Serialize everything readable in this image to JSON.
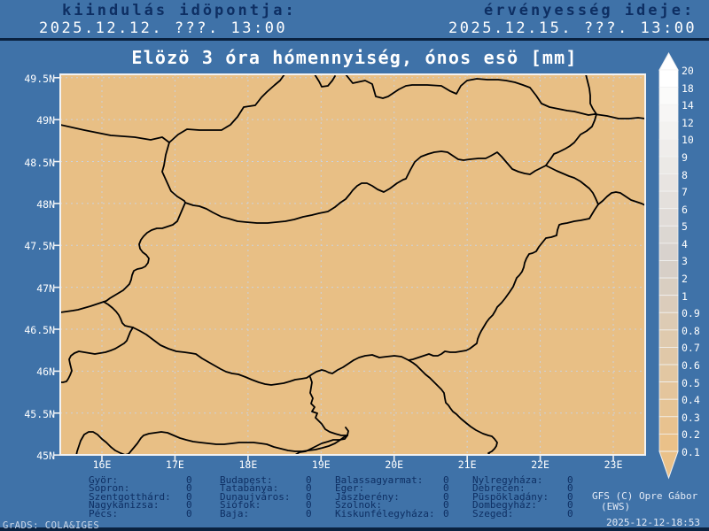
{
  "header": {
    "init_label": "kiindulás idöpontja:",
    "init_value": "2025.12.12. ???. 13:00",
    "valid_label": "érvényesség ideje:",
    "valid_value": "2025.12.15. ???. 13:00"
  },
  "title": "Elözö 3 óra hómennyiség, ónos esö [mm]",
  "map": {
    "lat_ticks": [
      "49.5N",
      "49N",
      "48.5N",
      "48N",
      "47.5N",
      "47N",
      "46.5N",
      "46N",
      "45.5N",
      "45N"
    ],
    "lon_ticks": [
      "16E",
      "17E",
      "18E",
      "19E",
      "20E",
      "21E",
      "22E",
      "23E"
    ]
  },
  "colorbar": {
    "labels": [
      "20",
      "18",
      "14",
      "12",
      "10",
      "9",
      "8",
      "7",
      "6",
      "5",
      "4",
      "3",
      "2",
      "1",
      "0.9",
      "0.8",
      "0.7",
      "0.6",
      "0.5",
      "0.4",
      "0.3",
      "0.2",
      "0.1"
    ]
  },
  "stations": {
    "columns": [
      [
        {
          "name": "Györ:",
          "value": "0"
        },
        {
          "name": "Sopron:",
          "value": "0"
        },
        {
          "name": "Szentgotthárd:",
          "value": "0"
        },
        {
          "name": "Nagykanizsa:",
          "value": "0"
        },
        {
          "name": "Pécs:",
          "value": "0"
        }
      ],
      [
        {
          "name": "Budapest:",
          "value": "0"
        },
        {
          "name": "Tatabánya:",
          "value": "0"
        },
        {
          "name": "Dunaujváros:",
          "value": "0"
        },
        {
          "name": "Siófok:",
          "value": "0"
        },
        {
          "name": "Baja:",
          "value": "0"
        }
      ],
      [
        {
          "name": "Balassagyarmat:",
          "value": "0"
        },
        {
          "name": "Eger:",
          "value": "0"
        },
        {
          "name": "Jászberény:",
          "value": "0"
        },
        {
          "name": "Szolnok:",
          "value": "0"
        },
        {
          "name": "Kiskunfélegyháza:",
          "value": "0"
        }
      ],
      [
        {
          "name": "Nylregyháza:",
          "value": "0"
        },
        {
          "name": "Debrecen:",
          "value": "0"
        },
        {
          "name": "Püspökladány:",
          "value": "0"
        },
        {
          "name": "Dombegyház:",
          "value": "0"
        },
        {
          "name": "Szeged:",
          "value": "0"
        }
      ]
    ]
  },
  "credit": {
    "line1": "GFS (C) Opre Gábor",
    "line2": "(EWS)",
    "timestamp": "2025-12-12-18:53"
  },
  "grads_stamp": "GrADS: COLA&IGES",
  "colors": {
    "background": "#3F72A8",
    "map_fill": "#E8BF85",
    "text_navy": "#0E2F63",
    "text_white": "#FFFFFF",
    "border_line": "#000000",
    "gridline": "#CCD2DC",
    "frame": "#F2F2F2",
    "bar_top": "#FFFFFF",
    "bar_mid": "#D6D0CA",
    "bar_bottom": "#EAC189"
  }
}
